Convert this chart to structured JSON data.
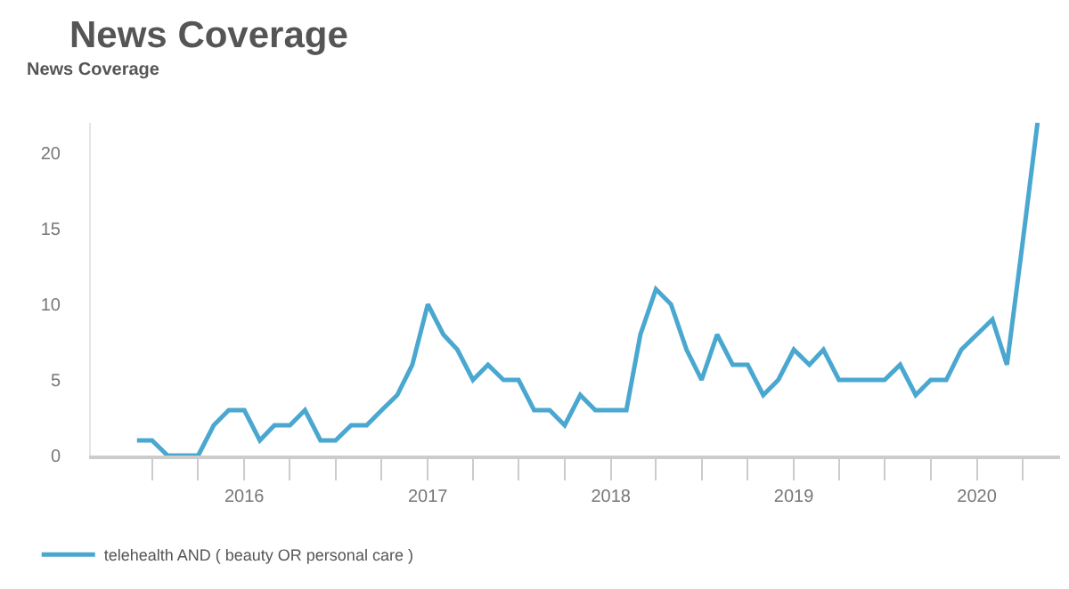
{
  "chart_data": {
    "type": "line",
    "title": "News Coverage",
    "ylabel": "News Coverage",
    "x": [
      "2015-06",
      "2015-07",
      "2015-08",
      "2015-09",
      "2015-10",
      "2015-11",
      "2015-12",
      "2016-01",
      "2016-02",
      "2016-03",
      "2016-04",
      "2016-05",
      "2016-06",
      "2016-07",
      "2016-08",
      "2016-09",
      "2016-10",
      "2016-11",
      "2016-12",
      "2017-01",
      "2017-02",
      "2017-03",
      "2017-04",
      "2017-05",
      "2017-06",
      "2017-07",
      "2017-08",
      "2017-09",
      "2017-10",
      "2017-11",
      "2017-12",
      "2018-01",
      "2018-02",
      "2018-03",
      "2018-04",
      "2018-05",
      "2018-06",
      "2018-07",
      "2018-08",
      "2018-09",
      "2018-10",
      "2018-11",
      "2018-12",
      "2019-01",
      "2019-02",
      "2019-03",
      "2019-04",
      "2019-05",
      "2019-06",
      "2019-07",
      "2019-08",
      "2019-09",
      "2019-10",
      "2019-11",
      "2019-12",
      "2020-01",
      "2020-02",
      "2020-03",
      "2020-04",
      "2020-05"
    ],
    "series": [
      {
        "name": "telehealth AND ( beauty OR personal care )",
        "color": "#4aa8d0",
        "values": [
          1,
          1,
          0,
          0,
          0,
          2,
          3,
          3,
          1,
          2,
          2,
          3,
          1,
          1,
          2,
          2,
          3,
          4,
          6,
          10,
          8,
          7,
          5,
          6,
          5,
          5,
          3,
          3,
          2,
          4,
          3,
          3,
          3,
          8,
          11,
          10,
          7,
          5,
          8,
          6,
          6,
          4,
          5,
          7,
          6,
          7,
          5,
          5,
          5,
          5,
          6,
          4,
          5,
          5,
          7,
          8,
          9,
          6,
          14,
          22
        ]
      }
    ],
    "xlim": [
      "2015-03",
      "2020-06-15"
    ],
    "xticks": [
      {
        "value": "2015-07",
        "label": null
      },
      {
        "value": "2015-10",
        "label": null
      },
      {
        "value": "2016-01",
        "label": "2016"
      },
      {
        "value": "2016-04",
        "label": null
      },
      {
        "value": "2016-07",
        "label": null
      },
      {
        "value": "2016-10",
        "label": null
      },
      {
        "value": "2017-01",
        "label": "2017"
      },
      {
        "value": "2017-04",
        "label": null
      },
      {
        "value": "2017-07",
        "label": null
      },
      {
        "value": "2017-10",
        "label": null
      },
      {
        "value": "2018-01",
        "label": "2018"
      },
      {
        "value": "2018-04",
        "label": null
      },
      {
        "value": "2018-07",
        "label": null
      },
      {
        "value": "2018-10",
        "label": null
      },
      {
        "value": "2019-01",
        "label": "2019"
      },
      {
        "value": "2019-04",
        "label": null
      },
      {
        "value": "2019-07",
        "label": null
      },
      {
        "value": "2019-10",
        "label": null
      },
      {
        "value": "2020-01",
        "label": "2020"
      },
      {
        "value": "2020-04",
        "label": null
      }
    ],
    "ylim": [
      0,
      22
    ],
    "yticks": [
      0,
      5,
      10,
      15,
      20
    ],
    "grid": false,
    "legend": "bottom left",
    "marker": "none",
    "line_style": "solid"
  }
}
